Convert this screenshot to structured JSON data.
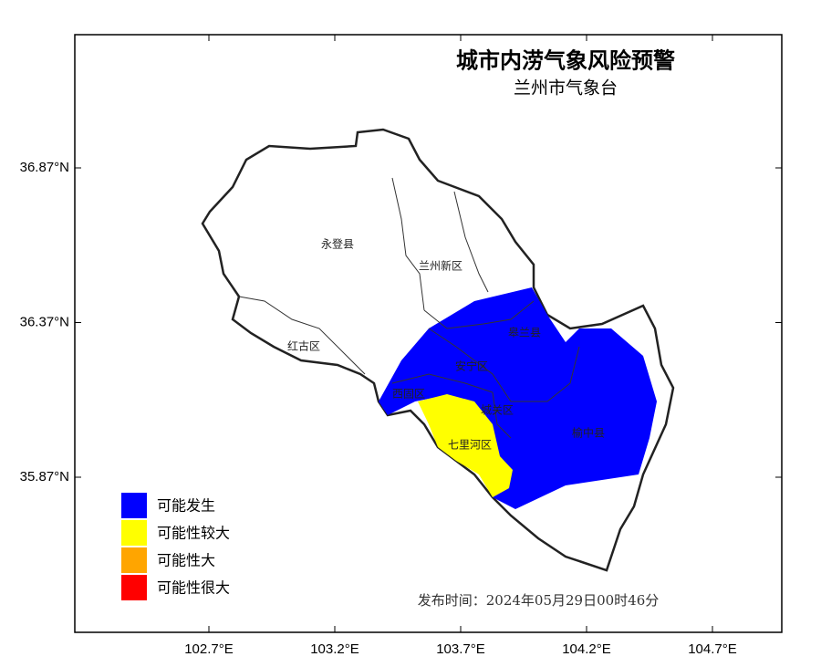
{
  "map": {
    "title": "城市内涝气象风险预警",
    "subtitle": "兰州市气象台",
    "publish_time": "发布时间：2024年05月29日00时46分",
    "xticks": [
      {
        "value": 102.7,
        "label": "102.7°E"
      },
      {
        "value": 103.2,
        "label": "103.2°E"
      },
      {
        "value": 103.7,
        "label": "103.7°E"
      },
      {
        "value": 104.2,
        "label": "104.2°E"
      },
      {
        "value": 104.7,
        "label": "104.7°E"
      }
    ],
    "yticks": [
      {
        "value": 36.87,
        "label": "36.87°N"
      },
      {
        "value": 36.37,
        "label": "36.37°N"
      },
      {
        "value": 35.87,
        "label": "35.87°N"
      }
    ],
    "districts": [
      "永登县",
      "兰州新区",
      "红古区",
      "皋兰县",
      "安宁区",
      "西固区",
      "城关区",
      "七里河区",
      "榆中县"
    ],
    "legend": [
      {
        "name": "可能发生",
        "color": "#0000ff"
      },
      {
        "name": "可能性较大",
        "color": "#ffff00"
      },
      {
        "name": "可能性大",
        "color": "#ffa500"
      },
      {
        "name": "可能性很大",
        "color": "#ff0000"
      }
    ]
  }
}
